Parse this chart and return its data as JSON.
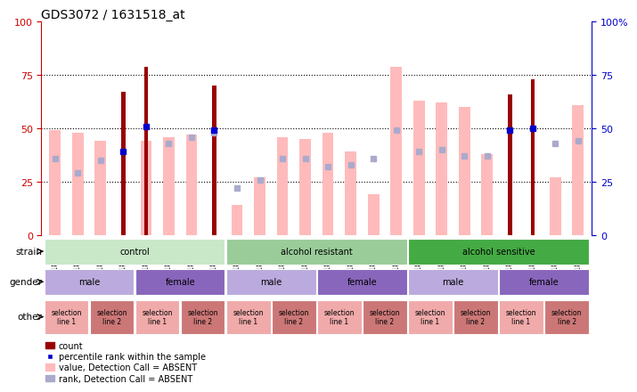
{
  "title": "GDS3072 / 1631518_at",
  "samples": [
    "GSM183815",
    "GSM183816",
    "GSM183990",
    "GSM183991",
    "GSM183817",
    "GSM183856",
    "GSM183992",
    "GSM183993",
    "GSM183887",
    "GSM183888",
    "GSM184121",
    "GSM184122",
    "GSM183936",
    "GSM183989",
    "GSM184123",
    "GSM184124",
    "GSM183857",
    "GSM183858",
    "GSM183994",
    "GSM184118",
    "GSM183875",
    "GSM183886",
    "GSM184119",
    "GSM184120"
  ],
  "value_absent": [
    49,
    48,
    44,
    0,
    44,
    46,
    47,
    0,
    14,
    27,
    46,
    45,
    48,
    39,
    19,
    79,
    63,
    62,
    60,
    38,
    0,
    0,
    27,
    61
  ],
  "count": [
    0,
    0,
    0,
    67,
    79,
    0,
    0,
    70,
    0,
    0,
    0,
    0,
    0,
    0,
    0,
    0,
    0,
    0,
    0,
    0,
    66,
    73,
    0,
    0
  ],
  "rank_absent": [
    36,
    29,
    35,
    0,
    0,
    43,
    46,
    48,
    22,
    26,
    36,
    36,
    32,
    33,
    36,
    49,
    39,
    40,
    37,
    37,
    0,
    0,
    43,
    44
  ],
  "percentile_rank": [
    0,
    0,
    0,
    39,
    51,
    0,
    0,
    49,
    0,
    0,
    0,
    0,
    0,
    0,
    0,
    0,
    0,
    0,
    0,
    0,
    49,
    50,
    0,
    0
  ],
  "strain_groups": [
    {
      "label": "control",
      "start": 0,
      "end": 8,
      "color": "#c8e8c8"
    },
    {
      "label": "alcohol resistant",
      "start": 8,
      "end": 16,
      "color": "#99cc99"
    },
    {
      "label": "alcohol sensitive",
      "start": 16,
      "end": 24,
      "color": "#44aa44"
    }
  ],
  "gender_groups": [
    {
      "label": "male",
      "start": 0,
      "end": 4,
      "color": "#bbaadd"
    },
    {
      "label": "female",
      "start": 4,
      "end": 8,
      "color": "#8866bb"
    },
    {
      "label": "male",
      "start": 8,
      "end": 12,
      "color": "#bbaadd"
    },
    {
      "label": "female",
      "start": 12,
      "end": 16,
      "color": "#8866bb"
    },
    {
      "label": "male",
      "start": 16,
      "end": 20,
      "color": "#bbaadd"
    },
    {
      "label": "female",
      "start": 20,
      "end": 24,
      "color": "#8866bb"
    }
  ],
  "other_groups": [
    {
      "label": "selection\nline 1",
      "start": 0,
      "end": 2,
      "color": "#f0aaaa"
    },
    {
      "label": "selection\nline 2",
      "start": 2,
      "end": 4,
      "color": "#cc7777"
    },
    {
      "label": "selection\nline 1",
      "start": 4,
      "end": 6,
      "color": "#f0aaaa"
    },
    {
      "label": "selection\nline 2",
      "start": 6,
      "end": 8,
      "color": "#cc7777"
    },
    {
      "label": "selection\nline 1",
      "start": 8,
      "end": 10,
      "color": "#f0aaaa"
    },
    {
      "label": "selection\nline 2",
      "start": 10,
      "end": 12,
      "color": "#cc7777"
    },
    {
      "label": "selection\nline 1",
      "start": 12,
      "end": 14,
      "color": "#f0aaaa"
    },
    {
      "label": "selection\nline 2",
      "start": 14,
      "end": 16,
      "color": "#cc7777"
    },
    {
      "label": "selection\nline 1",
      "start": 16,
      "end": 18,
      "color": "#f0aaaa"
    },
    {
      "label": "selection\nline 2",
      "start": 18,
      "end": 20,
      "color": "#cc7777"
    },
    {
      "label": "selection\nline 1",
      "start": 20,
      "end": 22,
      "color": "#f0aaaa"
    },
    {
      "label": "selection\nline 2",
      "start": 22,
      "end": 24,
      "color": "#cc7777"
    }
  ],
  "value_color": "#ffbbbb",
  "count_color": "#990000",
  "rank_color": "#aaaacc",
  "percentile_color": "#0000cc",
  "left_axis_color": "#cc0000",
  "right_axis_color": "#0000cc"
}
